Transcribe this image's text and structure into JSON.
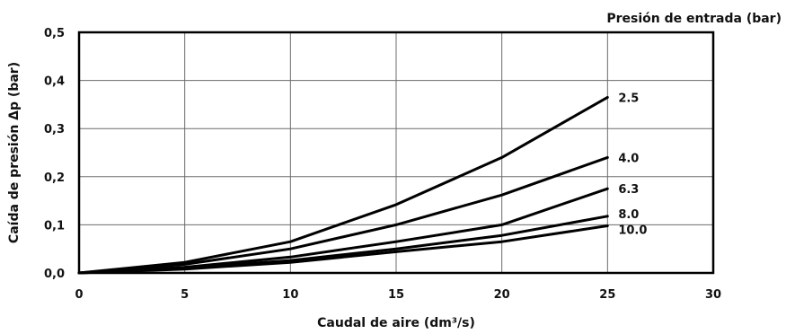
{
  "chart_data": {
    "type": "line",
    "title": "",
    "legend_title": "Presión de entrada (bar)",
    "xlabel": "Caudal de aire (dm³/s)",
    "ylabel": "Caída de presión Δp (bar)",
    "xlim": [
      0,
      30
    ],
    "ylim": [
      0,
      0.5
    ],
    "x_ticks": [
      "0",
      "5",
      "10",
      "15",
      "20",
      "25",
      "30"
    ],
    "x_tick_values": [
      0,
      5,
      10,
      15,
      20,
      25,
      30
    ],
    "y_ticks": [
      "0,0",
      "0,1",
      "0,2",
      "0,3",
      "0,4",
      "0,5"
    ],
    "y_tick_values": [
      0,
      0.1,
      0.2,
      0.3,
      0.4,
      0.5
    ],
    "grid": true,
    "x": [
      0,
      5,
      10,
      15,
      20,
      25
    ],
    "series": [
      {
        "name": "2.5",
        "values": [
          0,
          0.022,
          0.065,
          0.142,
          0.24,
          0.365
        ]
      },
      {
        "name": "4.0",
        "values": [
          0,
          0.018,
          0.05,
          0.1,
          0.162,
          0.24
        ]
      },
      {
        "name": "6.3",
        "values": [
          0,
          0.012,
          0.033,
          0.065,
          0.1,
          0.175
        ]
      },
      {
        "name": "8.0",
        "values": [
          0,
          0.01,
          0.026,
          0.05,
          0.078,
          0.118
        ]
      },
      {
        "name": "10.0",
        "values": [
          0,
          0.008,
          0.022,
          0.044,
          0.065,
          0.098
        ]
      }
    ]
  }
}
